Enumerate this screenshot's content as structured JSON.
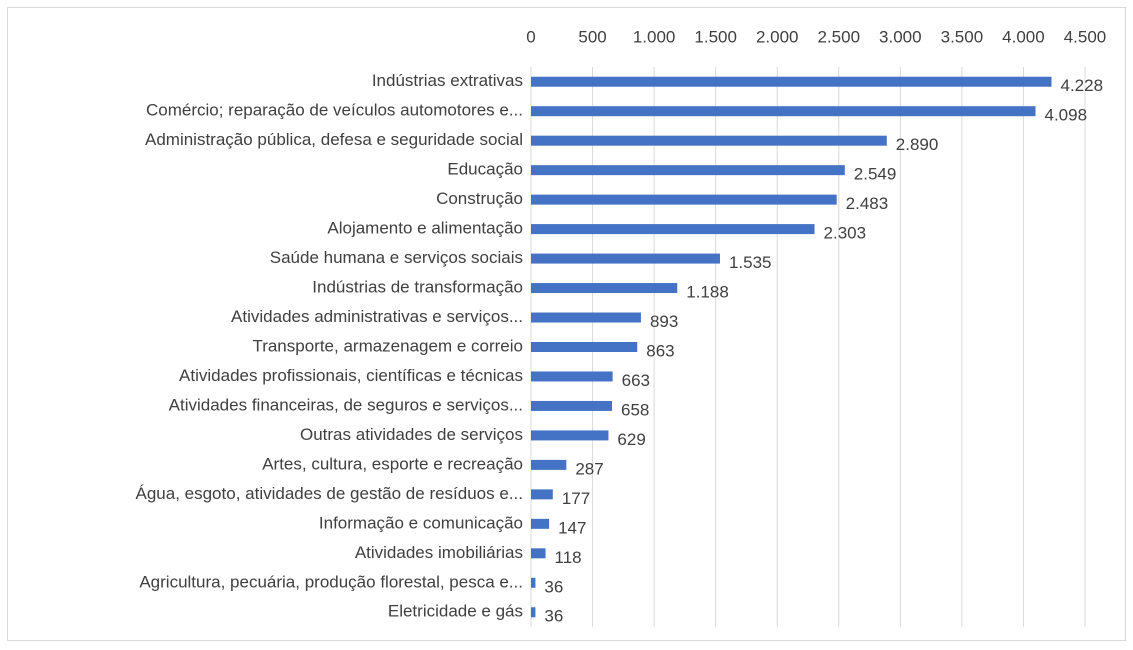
{
  "chart_data": {
    "type": "bar",
    "orientation": "horizontal",
    "categories": [
      "Indústrias extrativas",
      "Comércio; reparação de veículos automotores e...",
      "Administração pública, defesa e seguridade social",
      "Educação",
      "Construção",
      "Alojamento e alimentação",
      "Saúde humana e serviços sociais",
      "Indústrias de transformação",
      "Atividades administrativas e serviços...",
      "Transporte, armazenagem e correio",
      "Atividades profissionais, científicas e técnicas",
      "Atividades financeiras, de seguros e serviços...",
      "Outras atividades de serviços",
      "Artes, cultura, esporte e recreação",
      "Água, esgoto, atividades de gestão de resíduos e...",
      "Informação e comunicação",
      "Atividades imobiliárias",
      "Agricultura, pecuária, produção florestal, pesca e...",
      "Eletricidade e gás"
    ],
    "values": [
      4228,
      4098,
      2890,
      2549,
      2483,
      2303,
      1535,
      1188,
      893,
      863,
      663,
      658,
      629,
      287,
      177,
      147,
      118,
      36,
      36
    ],
    "value_labels": [
      "4.228",
      "4.098",
      "2.890",
      "2.549",
      "2.483",
      "2.303",
      "1.535",
      "1.188",
      "893",
      "863",
      "663",
      "658",
      "629",
      "287",
      "177",
      "147",
      "118",
      "36",
      "36"
    ],
    "color": "#4472c4",
    "xlim": [
      0,
      4500
    ],
    "xticks": [
      0,
      500,
      {
        "value": 1000,
        "label": "1.000"
      },
      {
        "value": 1500,
        "label": "1.500"
      },
      {
        "value": 2000,
        "label": "2.000"
      },
      {
        "value": 2500,
        "label": "2.500"
      },
      {
        "value": 3000,
        "label": "3.000"
      },
      {
        "value": 3500,
        "label": "3.500"
      },
      {
        "value": 4000,
        "label": "4.000"
      },
      {
        "value": 4500,
        "label": "4.500"
      }
    ],
    "grid": true
  }
}
